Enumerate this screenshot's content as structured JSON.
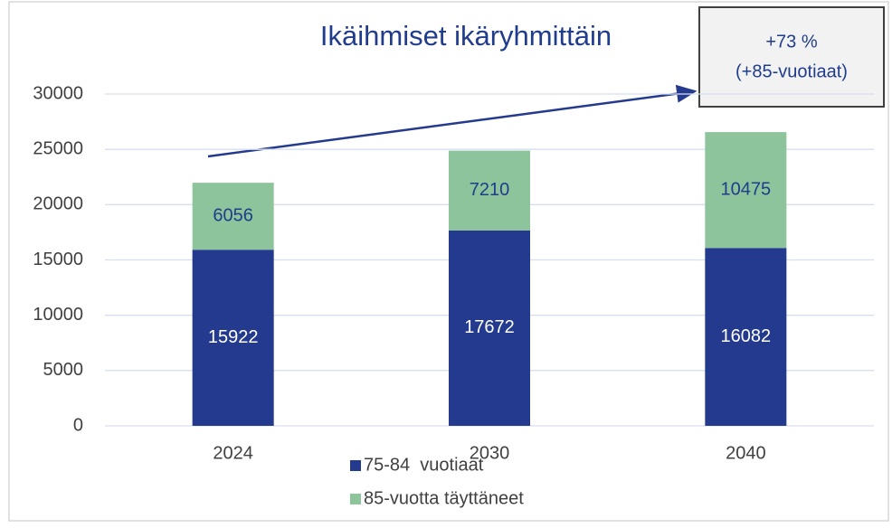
{
  "chart_data": {
    "type": "stacked_bar",
    "title": "Ikäihmiset ikäryhmittäin",
    "categories": [
      "2024",
      "2030",
      "2040"
    ],
    "series": [
      {
        "name": "75-84  vuotiaat",
        "color": "#233a8e",
        "values": [
          15922,
          17672,
          16082
        ]
      },
      {
        "name": "85-vuotta täyttäneet",
        "color": "#8dc49b",
        "values": [
          6056,
          7210,
          10475
        ]
      }
    ],
    "ylim": [
      0,
      30000
    ],
    "yticks": [
      0,
      5000,
      10000,
      15000,
      20000,
      25000,
      30000
    ],
    "grid": true,
    "legend": "bottom",
    "annotation": [
      "+73 %",
      "(+85-vuotiaat)"
    ]
  }
}
